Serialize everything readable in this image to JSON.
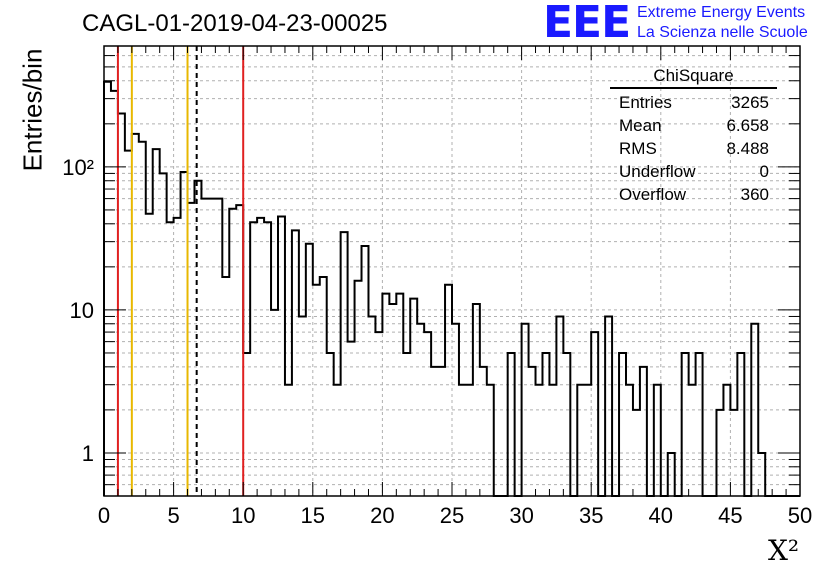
{
  "chart_data": {
    "type": "bar",
    "title": "CAGL-01-2019-04-23-00025",
    "xlabel": "X²",
    "ylabel": "Entries/bin",
    "xlim": [
      0,
      50
    ],
    "ylim": [
      0.5,
      700
    ],
    "log_y": true,
    "grid": true,
    "bin_width": 0.5,
    "x_ticks": [
      "0",
      "5",
      "10",
      "15",
      "20",
      "25",
      "30",
      "35",
      "40",
      "45",
      "50"
    ],
    "y_ticks": [
      {
        "value": 1,
        "label": "1"
      },
      {
        "value": 10,
        "label": "10"
      },
      {
        "value": 100,
        "label": "10²"
      }
    ],
    "values": [
      394,
      340,
      236,
      130,
      170,
      150,
      47,
      133,
      90,
      41,
      44,
      92,
      56,
      80,
      60,
      60,
      60,
      17,
      51,
      54,
      5,
      41,
      44,
      41,
      10,
      45,
      3,
      36,
      9,
      29,
      15,
      17,
      5,
      3,
      35,
      6,
      16,
      28,
      9,
      7,
      13,
      11,
      13,
      5,
      12,
      8,
      7,
      4,
      4,
      15,
      8,
      3,
      3,
      11,
      4,
      3,
      0.5,
      0.5,
      5,
      0.5,
      8,
      4,
      3,
      5,
      3,
      9,
      5,
      0.5,
      3,
      3,
      7,
      0.5,
      9,
      0.5,
      5,
      3,
      2,
      4,
      0.5,
      3,
      0.5,
      1,
      0.5,
      5,
      3,
      5,
      0.5,
      0.5,
      2,
      3,
      2,
      5,
      0.5,
      8,
      1,
      0.5,
      0.5,
      0.5,
      0.5,
      0.5
    ],
    "vertical_lines": [
      {
        "x": 1,
        "color": "#e02020",
        "style": "solid"
      },
      {
        "x": 2,
        "color": "#e8b800",
        "style": "solid"
      },
      {
        "x": 6,
        "color": "#e8b800",
        "style": "solid"
      },
      {
        "x": 6.658,
        "color": "#000000",
        "style": "dashed"
      },
      {
        "x": 10,
        "color": "#e02020",
        "style": "solid"
      }
    ]
  },
  "stats": {
    "title": "ChiSquare",
    "rows": [
      {
        "label": "Entries",
        "value": "3265"
      },
      {
        "label": "Mean",
        "value": "6.658"
      },
      {
        "label": "RMS",
        "value": "8.488"
      },
      {
        "label": "Underflow",
        "value": "0"
      },
      {
        "label": "Overflow",
        "value": "360"
      }
    ]
  },
  "logo": {
    "mark": "EEE",
    "line1": "Extreme Energy Events",
    "line2": "La Scienza nelle Scuole",
    "color": "#1a1aff"
  }
}
